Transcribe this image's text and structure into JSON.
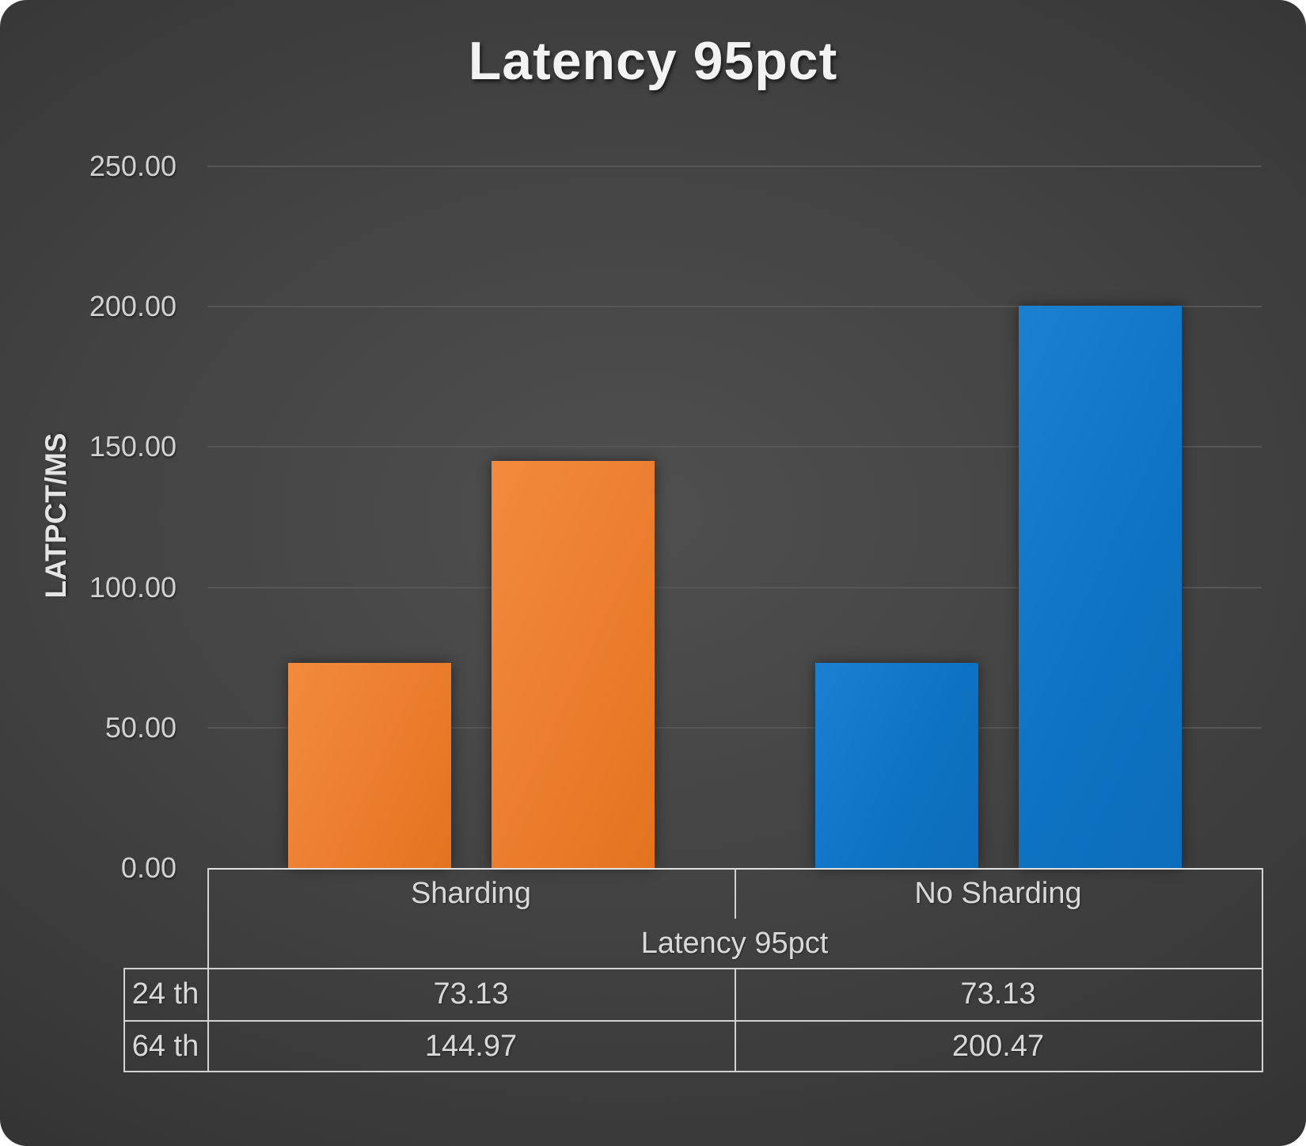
{
  "title": "Latency 95pct",
  "y_axis": {
    "title": "LATPCT/MS",
    "ticks": [
      "250.00",
      "200.00",
      "150.00",
      "100.00",
      "50.00",
      "0.00"
    ]
  },
  "chart_data": {
    "type": "bar",
    "title": "Latency 95pct",
    "xlabel": "",
    "ylabel": "LATPCT/MS",
    "ylim": [
      0,
      250
    ],
    "ytick_step": 50,
    "grid": true,
    "legend_position": "none",
    "categories": [
      "Sharding",
      "No Sharding"
    ],
    "series": [
      {
        "name": "24 th",
        "values": [
          73.13,
          73.13
        ]
      },
      {
        "name": "64 th",
        "values": [
          144.97,
          200.47
        ]
      }
    ],
    "category_colors": {
      "Sharding": "#EC7F2F",
      "No Sharding": "#0E73C3"
    }
  },
  "data_table": {
    "category_headers": [
      "Sharding",
      "No Sharding"
    ],
    "series_group_label": "Latency 95pct",
    "rows": [
      {
        "label": "24 th",
        "values": [
          "73.13",
          "73.13"
        ]
      },
      {
        "label": "64 th",
        "values": [
          "144.97",
          "200.47"
        ]
      }
    ]
  }
}
